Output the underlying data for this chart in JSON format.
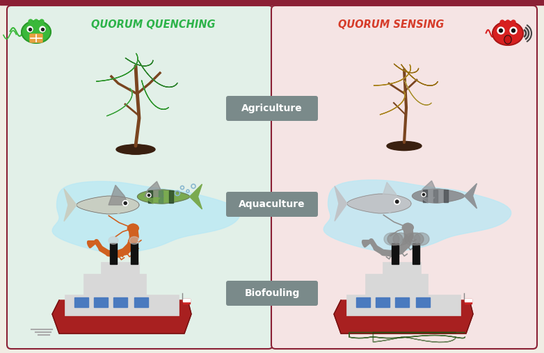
{
  "title_bar_color": "#8B2035",
  "bg_color": "#F0EDE4",
  "left_panel_color": "#E2F0E8",
  "right_panel_color": "#F5E4E4",
  "border_color": "#8B2035",
  "qq_label": "QUORUM QUENCHING",
  "qs_label": "QUORUM SENSING",
  "qq_color": "#2db34a",
  "qs_color": "#d63c2a",
  "label_box_color": "#7a8a8a",
  "label_text_color": "#ffffff",
  "label_Agriculture": "Agriculture",
  "label_Aquaculture": "Aquaculture",
  "label_Biofouling": "Biofouling",
  "water_color": "#b8e8f5",
  "ship_hull_color": "#a82020",
  "ship_body_color": "#d8d8d8",
  "ship_window_color": "#4a7abf",
  "fouling_color": "#2a5a1a",
  "smoke_color": "#888888",
  "plant_green_dark": "#3a9a3a",
  "plant_green_mid": "#4db848",
  "plant_green_light": "#6fc96f",
  "plant_brown": "#7a4520",
  "plant_soil": "#3a2010",
  "plant_yellow_dark": "#b08820",
  "plant_yellow_mid": "#c8a830",
  "plant_yellow_light": "#d8c070",
  "fish_grey": "#b0b8be",
  "fish_grey2": "#8a9298",
  "fish_stripe_dark": "#3a5a3a",
  "fish_stripe_light": "#7aaa7a",
  "shrimp_orange": "#d06020",
  "shrimp_grey": "#909090",
  "bacteria_green": "#3ab83a",
  "bacteria_red": "#d82020",
  "ripple_color": "#aaaaaa"
}
